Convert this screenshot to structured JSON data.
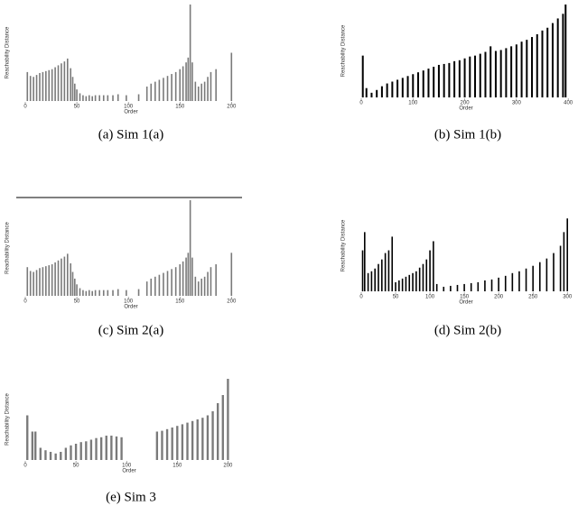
{
  "chart_data": [
    {
      "type": "bar",
      "caption": "(a) Sim 1(a)",
      "xlabel": "Order",
      "ylabel": "Reachability Distance",
      "color": "#7a7a7a",
      "xlim": [
        0,
        205
      ],
      "ylim": [
        0,
        1
      ],
      "xticks": [
        0,
        50,
        100,
        150,
        200
      ],
      "x": [
        2,
        5,
        8,
        11,
        14,
        17,
        20,
        23,
        26,
        29,
        32,
        35,
        38,
        41,
        44,
        46,
        48,
        50,
        53,
        56,
        59,
        62,
        65,
        68,
        72,
        76,
        80,
        85,
        90,
        98,
        110,
        118,
        122,
        126,
        130,
        134,
        138,
        142,
        146,
        150,
        153,
        156,
        158,
        160,
        162,
        165,
        168,
        171,
        174,
        177,
        180,
        185,
        200
      ],
      "values": [
        0.3,
        0.26,
        0.25,
        0.27,
        0.29,
        0.3,
        0.31,
        0.32,
        0.33,
        0.35,
        0.37,
        0.39,
        0.41,
        0.44,
        0.34,
        0.25,
        0.18,
        0.12,
        0.08,
        0.06,
        0.05,
        0.06,
        0.05,
        0.06,
        0.06,
        0.06,
        0.06,
        0.06,
        0.07,
        0.06,
        0.07,
        0.15,
        0.18,
        0.2,
        0.22,
        0.24,
        0.26,
        0.28,
        0.3,
        0.33,
        0.36,
        0.4,
        0.45,
        1.0,
        0.4,
        0.2,
        0.15,
        0.18,
        0.2,
        0.25,
        0.3,
        0.33,
        0.5
      ]
    },
    {
      "type": "bar",
      "caption": "(b) Sim 1(b)",
      "xlabel": "Order",
      "ylabel": "Reachability Distance",
      "color": "#000000",
      "xlim": [
        0,
        405
      ],
      "ylim": [
        0,
        1
      ],
      "xticks": [
        0,
        100,
        200,
        300,
        400
      ],
      "x": [
        3,
        10,
        20,
        30,
        40,
        50,
        60,
        70,
        80,
        90,
        100,
        110,
        120,
        130,
        140,
        150,
        160,
        170,
        180,
        190,
        200,
        210,
        220,
        230,
        240,
        250,
        260,
        270,
        280,
        290,
        300,
        310,
        320,
        330,
        340,
        350,
        360,
        370,
        380,
        390,
        395
      ],
      "values": [
        0.45,
        0.1,
        0.05,
        0.08,
        0.12,
        0.15,
        0.17,
        0.19,
        0.21,
        0.23,
        0.25,
        0.27,
        0.29,
        0.31,
        0.33,
        0.35,
        0.36,
        0.37,
        0.39,
        0.4,
        0.42,
        0.44,
        0.45,
        0.47,
        0.49,
        0.55,
        0.5,
        0.51,
        0.53,
        0.55,
        0.57,
        0.6,
        0.62,
        0.65,
        0.68,
        0.72,
        0.75,
        0.8,
        0.85,
        0.9,
        1.0
      ]
    },
    {
      "type": "bar",
      "caption": "(c) Sim 2(a)",
      "xlabel": "Order",
      "ylabel": "Reachability Distance",
      "color": "#7a7a7a",
      "xlim": [
        0,
        205
      ],
      "ylim": [
        0,
        1
      ],
      "xticks": [
        0,
        50,
        100,
        150,
        200
      ],
      "x": [
        2,
        5,
        8,
        11,
        14,
        17,
        20,
        23,
        26,
        29,
        32,
        35,
        38,
        41,
        44,
        46,
        48,
        50,
        53,
        56,
        59,
        62,
        65,
        68,
        72,
        76,
        80,
        85,
        90,
        98,
        110,
        118,
        122,
        126,
        130,
        134,
        138,
        142,
        146,
        150,
        153,
        156,
        158,
        160,
        162,
        165,
        168,
        171,
        174,
        177,
        180,
        185,
        200
      ],
      "values": [
        0.3,
        0.26,
        0.25,
        0.27,
        0.29,
        0.3,
        0.31,
        0.32,
        0.33,
        0.35,
        0.37,
        0.39,
        0.41,
        0.44,
        0.34,
        0.25,
        0.18,
        0.12,
        0.08,
        0.06,
        0.05,
        0.06,
        0.05,
        0.06,
        0.06,
        0.06,
        0.06,
        0.06,
        0.07,
        0.06,
        0.07,
        0.15,
        0.18,
        0.2,
        0.22,
        0.24,
        0.26,
        0.28,
        0.3,
        0.33,
        0.36,
        0.4,
        0.45,
        1.0,
        0.4,
        0.2,
        0.15,
        0.18,
        0.2,
        0.25,
        0.3,
        0.33,
        0.45
      ]
    },
    {
      "type": "bar",
      "caption": "(d) Sim 2(b)",
      "xlabel": "Order",
      "ylabel": "Reachability Distance",
      "color": "#000000",
      "xlim": [
        0,
        305
      ],
      "ylim": [
        0,
        1
      ],
      "xticks": [
        0,
        50,
        100,
        150,
        200,
        250,
        300
      ],
      "x": [
        2,
        5,
        10,
        15,
        20,
        25,
        30,
        35,
        40,
        45,
        50,
        55,
        60,
        65,
        70,
        75,
        80,
        85,
        90,
        95,
        100,
        105,
        110,
        120,
        130,
        140,
        150,
        160,
        170,
        180,
        190,
        200,
        210,
        220,
        230,
        240,
        250,
        260,
        270,
        280,
        290,
        295,
        300
      ],
      "values": [
        0.45,
        0.65,
        0.2,
        0.22,
        0.25,
        0.3,
        0.35,
        0.42,
        0.45,
        0.6,
        0.1,
        0.12,
        0.14,
        0.16,
        0.18,
        0.2,
        0.22,
        0.26,
        0.3,
        0.35,
        0.45,
        0.55,
        0.08,
        0.05,
        0.06,
        0.07,
        0.08,
        0.09,
        0.1,
        0.12,
        0.13,
        0.15,
        0.17,
        0.2,
        0.22,
        0.25,
        0.28,
        0.32,
        0.36,
        0.42,
        0.5,
        0.65,
        0.8
      ]
    },
    {
      "type": "bar",
      "caption": "(e) Sim 3",
      "xlabel": "Order",
      "ylabel": "Reachability Distance",
      "color": "#7a7a7a",
      "xlim": [
        0,
        205
      ],
      "ylim": [
        0,
        1
      ],
      "xticks": [
        0,
        50,
        100,
        150,
        200
      ],
      "x": [
        2,
        7,
        10,
        15,
        20,
        25,
        30,
        35,
        40,
        45,
        50,
        55,
        60,
        65,
        70,
        75,
        80,
        85,
        90,
        95,
        130,
        135,
        140,
        145,
        150,
        155,
        160,
        165,
        170,
        175,
        180,
        185,
        190,
        195,
        200
      ],
      "values": [
        0.55,
        0.35,
        0.35,
        0.15,
        0.12,
        0.1,
        0.08,
        0.1,
        0.15,
        0.18,
        0.2,
        0.22,
        0.23,
        0.25,
        0.27,
        0.28,
        0.3,
        0.3,
        0.29,
        0.28,
        0.35,
        0.36,
        0.38,
        0.4,
        0.42,
        0.44,
        0.46,
        0.48,
        0.5,
        0.52,
        0.55,
        0.6,
        0.7,
        0.8,
        1.0
      ]
    }
  ]
}
